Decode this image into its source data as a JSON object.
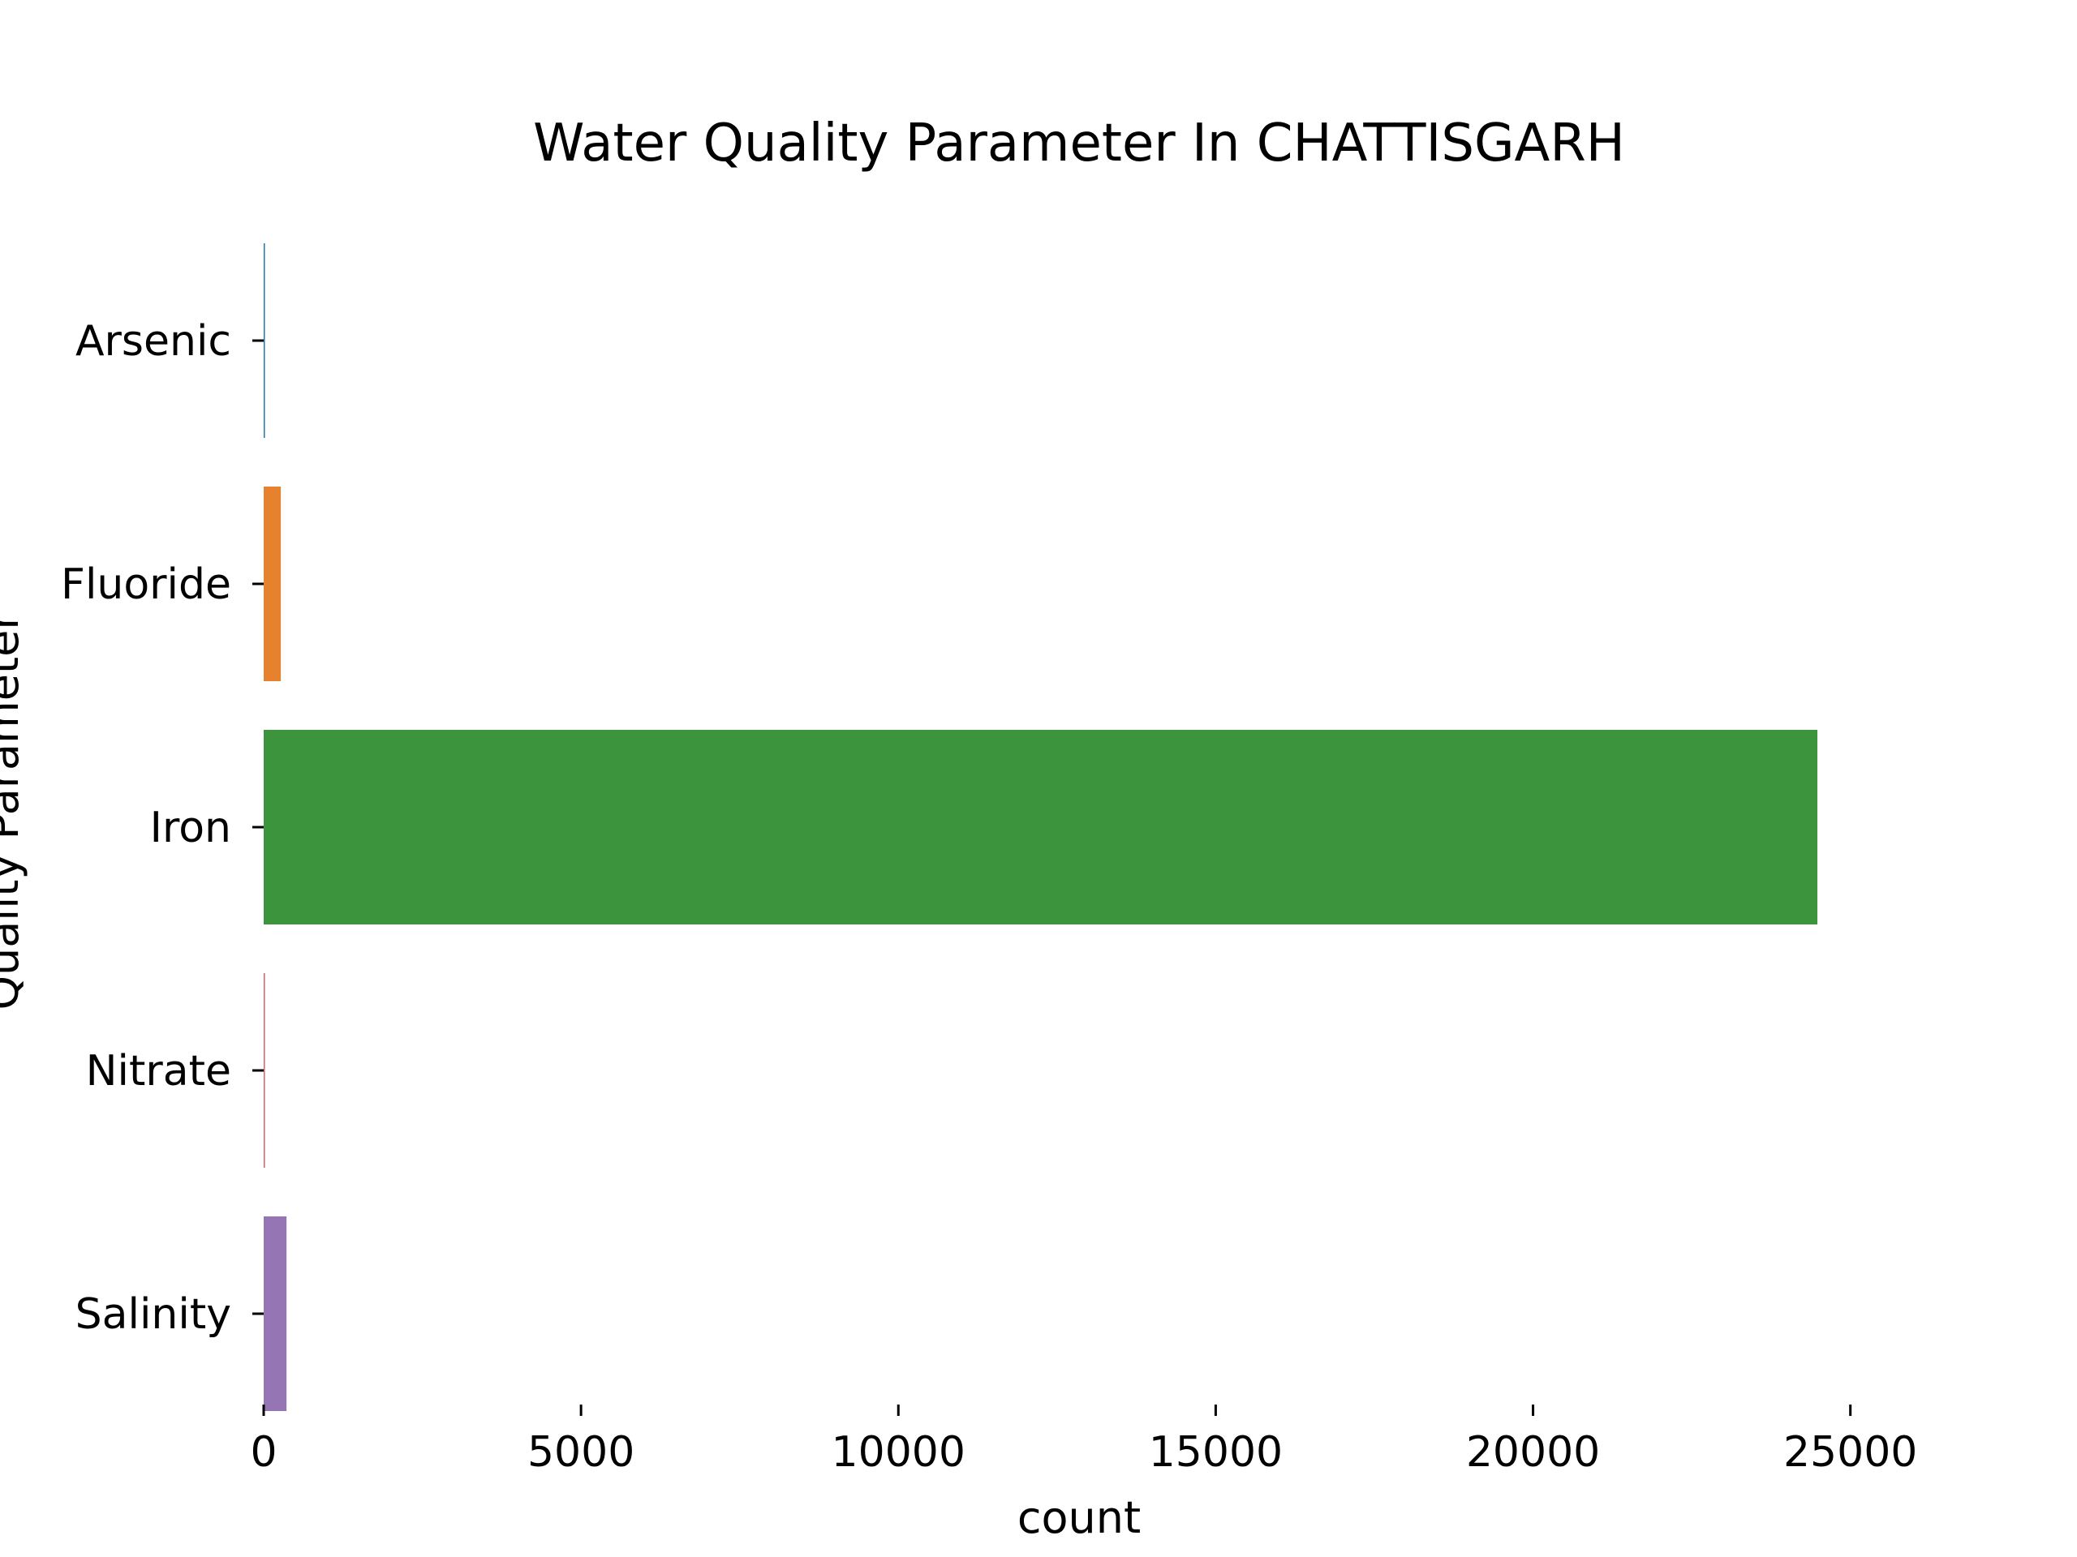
{
  "chart_data": {
    "type": "bar",
    "orientation": "horizontal",
    "title": "Water Quality Parameter In CHATTISGARH",
    "xlabel": "count",
    "ylabel": "Quality Parameter",
    "categories": [
      "Arsenic",
      "Fluoride",
      "Iron",
      "Nitrate",
      "Salinity"
    ],
    "values": [
      15,
      270,
      24480,
      10,
      360
    ],
    "colors": [
      "#1f77b4",
      "#e6822e",
      "#3c943c",
      "#d6616b",
      "#9575b3"
    ],
    "xlim": [
      0,
      25800
    ],
    "xticks": [
      "0",
      "5000",
      "10000",
      "15000",
      "20000",
      "25000"
    ],
    "grid": false,
    "legend": "none"
  }
}
